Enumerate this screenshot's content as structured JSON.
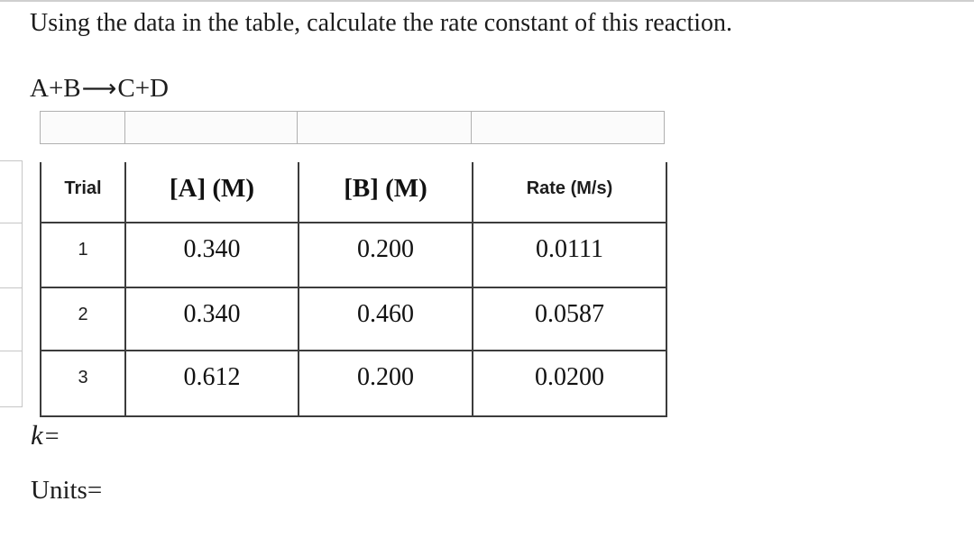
{
  "question": {
    "prompt": "Using the data in the table, calculate the rate constant of this reaction.",
    "reaction_lhs": "A+B",
    "reaction_arrow": "⟶",
    "reaction_rhs": "C+D"
  },
  "table": {
    "headers": [
      "Trial",
      "[A] (M)",
      "[B] (M)",
      "Rate (M/s)"
    ],
    "rows": [
      {
        "trial": "1",
        "conc_a": "0.340",
        "conc_b": "0.200",
        "rate": "0.0111"
      },
      {
        "trial": "2",
        "conc_a": "0.340",
        "conc_b": "0.460",
        "rate": "0.0587"
      },
      {
        "trial": "3",
        "conc_a": "0.612",
        "conc_b": "0.200",
        "rate": "0.0200"
      }
    ]
  },
  "answers": {
    "k_symbol": "k",
    "k_equals": "=",
    "units_label": "Units",
    "units_equals": "="
  },
  "colors": {
    "text": "#1d1d1d",
    "table_border": "#3c3c3c",
    "light_row_border": "#b0b0b0",
    "fragment_border": "#c6c6c6",
    "top_rule": "#cfcfcf",
    "background": "#ffffff"
  }
}
